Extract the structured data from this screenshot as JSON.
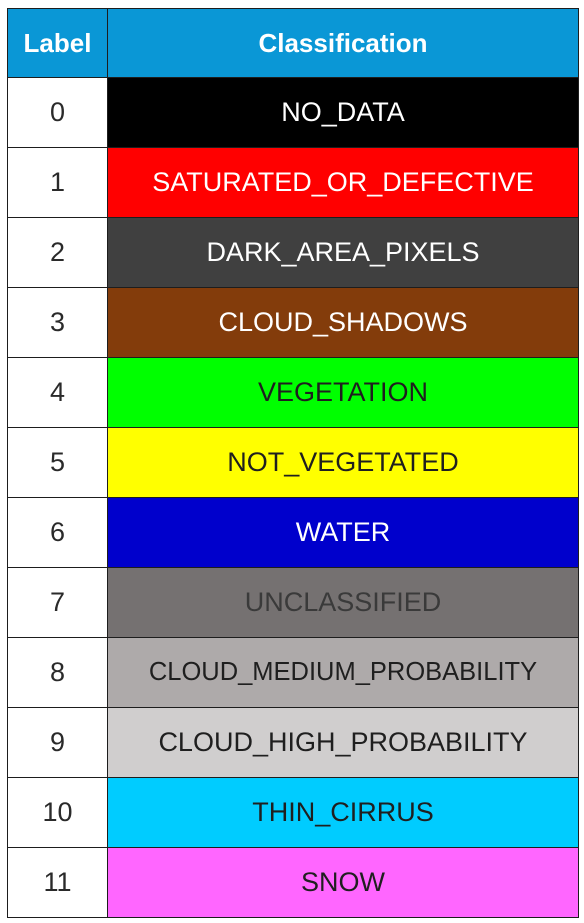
{
  "header": {
    "label": "Label",
    "classification": "Classification"
  },
  "header_color": "#0a97d6",
  "rows": [
    {
      "label": "0",
      "classification": "NO_DATA",
      "bg": "#000000",
      "fg": "#ffffff"
    },
    {
      "label": "1",
      "classification": "SATURATED_OR_DEFECTIVE",
      "bg": "#ff0000",
      "fg": "#ffffff"
    },
    {
      "label": "2",
      "classification": "DARK_AREA_PIXELS",
      "bg": "#404040",
      "fg": "#ffffff"
    },
    {
      "label": "3",
      "classification": "CLOUD_SHADOWS",
      "bg": "#833c0b",
      "fg": "#ffffff"
    },
    {
      "label": "4",
      "classification": "VEGETATION",
      "bg": "#00ff00",
      "fg": "#1f1f1f"
    },
    {
      "label": "5",
      "classification": "NOT_VEGETATED",
      "bg": "#ffff00",
      "fg": "#1f1f1f"
    },
    {
      "label": "6",
      "classification": "WATER",
      "bg": "#0000cc",
      "fg": "#ffffff"
    },
    {
      "label": "7",
      "classification": "UNCLASSIFIED",
      "bg": "#757171",
      "fg": "#3a3a3a"
    },
    {
      "label": "8",
      "classification": "CLOUD_MEDIUM_PROBABILITY",
      "bg": "#aeaaaa",
      "fg": "#1f1f1f"
    },
    {
      "label": "9",
      "classification": "CLOUD_HIGH_PROBABILITY",
      "bg": "#d0cece",
      "fg": "#1f1f1f"
    },
    {
      "label": "10",
      "classification": "THIN_CIRRUS",
      "bg": "#00ccff",
      "fg": "#1f1f1f"
    },
    {
      "label": "11",
      "classification": "SNOW",
      "bg": "#ff66ff",
      "fg": "#1f1f1f"
    }
  ]
}
